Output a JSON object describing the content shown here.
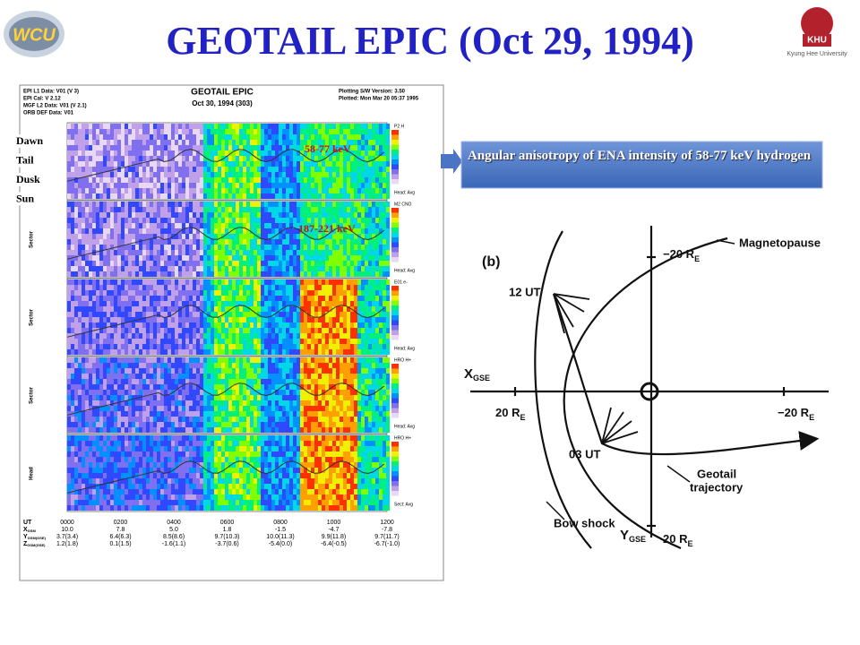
{
  "header": {
    "title": "GEOTAIL EPIC (Oct 29, 1994)",
    "left_logo": "WCU",
    "right_logo": "KHU",
    "right_logo_caption": "Kyung Hee University"
  },
  "plot": {
    "title": "GEOTAIL EPIC",
    "date": "Oct 30, 1994 (303)",
    "info_left": [
      "EPI L1 Data: V01 (V 3)",
      "EPI Cal: V 2.12",
      "MGF L2 Data: V01 (V 2.1)",
      "ORB DEF Data: V01"
    ],
    "info_right": [
      "Plotting S/W Version: 3.50",
      "Plotted: Mon Mar 20 05:37 1995"
    ],
    "direction_labels": [
      "Dawn",
      "Tail",
      "Dusk",
      "Sun"
    ],
    "energy_labels": [
      "58-77 keV",
      "187-221 keV"
    ],
    "panel_ids": [
      "P2 H",
      "M2 CNO",
      "E01 e-",
      "HRO H+",
      "HRO H+"
    ],
    "panel_units": [
      "Head: Avg",
      "Head: Avg",
      "Head: Avg",
      "Head: Avg",
      "Sect: Avg"
    ],
    "side_labels": [
      "Sector",
      "Sector",
      "Sector",
      "Head"
    ],
    "time_axis": {
      "label": "UT",
      "ticks": [
        "0000",
        "0200",
        "0400",
        "0600",
        "0800",
        "1000",
        "1200"
      ]
    },
    "ephemeris": [
      {
        "label": "X",
        "sub": "GSM",
        "values": [
          "10.0",
          "7.8",
          "5.0",
          "1.8",
          "-1.5",
          "-4.7",
          "-7.8"
        ]
      },
      {
        "label": "Y",
        "sub": "GSM(GSE)",
        "values": [
          "3.7(3.4)",
          "6.4(6.3)",
          "8.5(8.6)",
          "9.7(10.3)",
          "10.0(11.3)",
          "9.9(11.8)",
          "9.7(11.7)"
        ]
      },
      {
        "label": "Z",
        "sub": "GSM(GSE)",
        "values": [
          "1.2(1.8)",
          "0.1(1.5)",
          "-1.6(1.1)",
          "-3.7(0.6)",
          "-5.4(0.0)",
          "-6.4(-0.5)",
          "-6.7(-1.0)"
        ]
      }
    ]
  },
  "callout": {
    "text": "Angular anisotropy of ENA intensity of 58-77 keV hydrogen"
  },
  "diagram": {
    "panel_label": "(b)",
    "time_labels": [
      "12 UT",
      "03 UT"
    ],
    "x_axis": {
      "main": "X",
      "sub": "GSE"
    },
    "y_axis": {
      "main": "Y",
      "sub": "GSE"
    },
    "distances": [
      {
        "main": "−20 R",
        "sub": "E"
      },
      {
        "main": "20 R",
        "sub": "E"
      },
      {
        "main": "−20 R",
        "sub": "E"
      },
      {
        "main": "20 R",
        "sub": "E"
      }
    ],
    "magnetopause": "Magnetopause",
    "bow_shock": "Bow shock",
    "trajectory": [
      "Geotail",
      "trajectory"
    ]
  }
}
